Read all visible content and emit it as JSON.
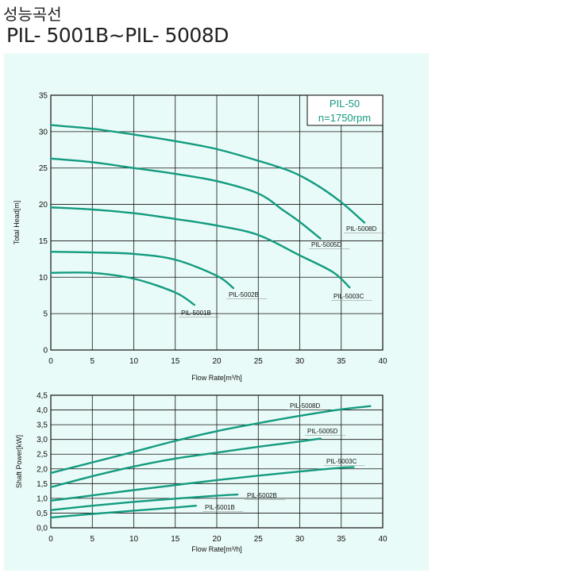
{
  "header": {
    "title": "성능곡선",
    "model_range": "PIL- 5001B~PIL- 5008D"
  },
  "colors": {
    "curve": "#139b80",
    "grid": "#111111",
    "panel_bg": "#e9fbf8",
    "legend_text": "#139b80"
  },
  "chart_data": [
    {
      "type": "line",
      "xlabel": "Flow Rate[m³/h]",
      "ylabel": "Total Head[m]",
      "xlim": [
        0,
        40
      ],
      "ylim": [
        0,
        35
      ],
      "xticks": [
        "0",
        "5",
        "10",
        "15",
        "20",
        "25",
        "30",
        "35",
        "40"
      ],
      "yticks": [
        "0",
        "5",
        "10",
        "15",
        "20",
        "25",
        "30",
        "35"
      ],
      "grid": true,
      "legend_box": {
        "line1": "PIL-50",
        "line2": "n=1750rpm"
      },
      "series": [
        {
          "name": "PIL-5001B",
          "points": [
            [
              0,
              10.6
            ],
            [
              5,
              10.6
            ],
            [
              10,
              9.8
            ],
            [
              15,
              7.9
            ],
            [
              17.3,
              6.2
            ]
          ]
        },
        {
          "name": "PIL-5002B",
          "points": [
            [
              0,
              13.5
            ],
            [
              5,
              13.4
            ],
            [
              10,
              13.2
            ],
            [
              15,
              12.4
            ],
            [
              20,
              10.2
            ],
            [
              22,
              8.5
            ]
          ]
        },
        {
          "name": "PIL-5003C",
          "points": [
            [
              0,
              19.6
            ],
            [
              5,
              19.3
            ],
            [
              10,
              18.8
            ],
            [
              15,
              18.0
            ],
            [
              20,
              17.1
            ],
            [
              25,
              15.8
            ],
            [
              30,
              13.0
            ],
            [
              34,
              10.7
            ],
            [
              36,
              8.6
            ]
          ]
        },
        {
          "name": "PIL-5005D",
          "points": [
            [
              0,
              26.3
            ],
            [
              5,
              25.8
            ],
            [
              10,
              25.0
            ],
            [
              15,
              24.2
            ],
            [
              20,
              23.2
            ],
            [
              25,
              21.5
            ],
            [
              28,
              19.2
            ],
            [
              30,
              17.6
            ],
            [
              32.5,
              15.3
            ]
          ]
        },
        {
          "name": "PIL-5008D",
          "points": [
            [
              0,
              30.9
            ],
            [
              5,
              30.4
            ],
            [
              10,
              29.6
            ],
            [
              15,
              28.7
            ],
            [
              20,
              27.6
            ],
            [
              25,
              26.0
            ],
            [
              29,
              24.5
            ],
            [
              32,
              22.7
            ],
            [
              35,
              20.3
            ],
            [
              37.8,
              17.5
            ]
          ]
        }
      ]
    },
    {
      "type": "line",
      "xlabel": "Flow Rate[m³/h]",
      "ylabel": "Shaft Power[kW]",
      "xlim": [
        0,
        40
      ],
      "ylim": [
        0,
        4.5
      ],
      "xticks": [
        "0",
        "5",
        "10",
        "15",
        "20",
        "25",
        "30",
        "35",
        "40"
      ],
      "yticks": [
        "0,0",
        "0,5",
        "1,0",
        "1,5",
        "2,0",
        "2,5",
        "3,0",
        "3,5",
        "4,0",
        "4,5"
      ],
      "grid": true,
      "series": [
        {
          "name": "PIL-5001B",
          "points": [
            [
              0,
              0.35
            ],
            [
              5,
              0.47
            ],
            [
              10,
              0.58
            ],
            [
              15,
              0.69
            ],
            [
              17.5,
              0.75
            ]
          ]
        },
        {
          "name": "PIL-5002B",
          "points": [
            [
              0,
              0.6
            ],
            [
              5,
              0.75
            ],
            [
              10,
              0.88
            ],
            [
              15,
              0.99
            ],
            [
              20,
              1.09
            ],
            [
              22.5,
              1.13
            ]
          ]
        },
        {
          "name": "PIL-5003C",
          "points": [
            [
              0,
              0.92
            ],
            [
              5,
              1.1
            ],
            [
              10,
              1.28
            ],
            [
              15,
              1.45
            ],
            [
              20,
              1.62
            ],
            [
              25,
              1.77
            ],
            [
              30,
              1.91
            ],
            [
              35,
              2.04
            ],
            [
              36.5,
              2.06
            ]
          ]
        },
        {
          "name": "PIL-5005D",
          "points": [
            [
              0,
              1.38
            ],
            [
              5,
              1.75
            ],
            [
              10,
              2.08
            ],
            [
              15,
              2.35
            ],
            [
              20,
              2.55
            ],
            [
              25,
              2.75
            ],
            [
              30,
              2.93
            ],
            [
              32.5,
              3.03
            ]
          ]
        },
        {
          "name": "PIL-5008D",
          "points": [
            [
              0,
              1.86
            ],
            [
              5,
              2.22
            ],
            [
              10,
              2.58
            ],
            [
              15,
              2.95
            ],
            [
              20,
              3.28
            ],
            [
              25,
              3.55
            ],
            [
              30,
              3.8
            ],
            [
              35,
              4.02
            ],
            [
              38.5,
              4.13
            ]
          ]
        }
      ]
    }
  ]
}
